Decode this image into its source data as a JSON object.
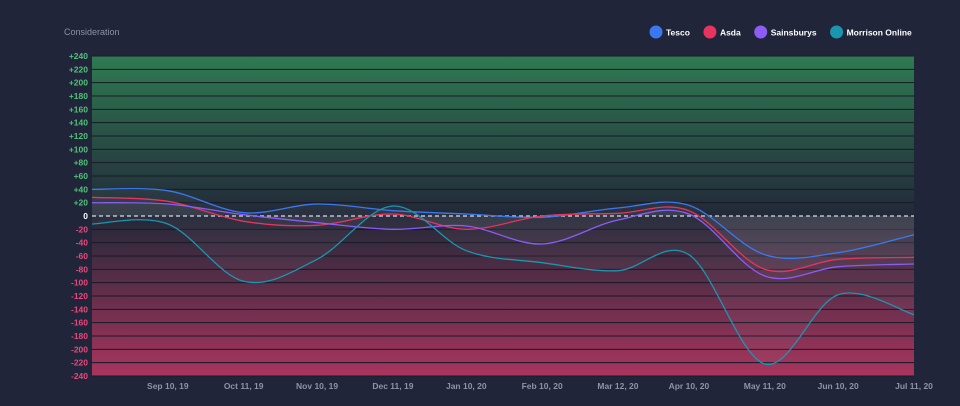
{
  "chart_data": {
    "type": "line",
    "title": "Consideration",
    "xlabel": "",
    "ylabel": "",
    "ylim": [
      -240,
      240
    ],
    "y_tick_step": 20,
    "x_range": [
      "2019-08-10",
      "2020-07-11"
    ],
    "x_ticks": [
      {
        "date": "2019-09-10",
        "label": "Sep 10, 19"
      },
      {
        "date": "2019-10-11",
        "label": "Oct 11, 19"
      },
      {
        "date": "2019-11-10",
        "label": "Nov 10, 19"
      },
      {
        "date": "2019-12-11",
        "label": "Dec 11, 19"
      },
      {
        "date": "2020-01-10",
        "label": "Jan 10, 20"
      },
      {
        "date": "2020-02-10",
        "label": "Feb 10, 20"
      },
      {
        "date": "2020-03-12",
        "label": "Mar 12, 20"
      },
      {
        "date": "2020-04-10",
        "label": "Apr 10, 20"
      },
      {
        "date": "2020-05-11",
        "label": "May 11, 20"
      },
      {
        "date": "2020-06-10",
        "label": "Jun 10, 20"
      },
      {
        "date": "2020-07-11",
        "label": "Jul 11, 20"
      }
    ],
    "legend_position": "top-right",
    "zero_line": "dashed",
    "positive_color": "#2f7a52",
    "negative_color": "#a8355e",
    "series": [
      {
        "name": "Tesco",
        "color": "#3b78f0",
        "x": [
          "2019-08-10",
          "2019-09-10",
          "2019-10-11",
          "2019-11-10",
          "2019-12-11",
          "2020-01-10",
          "2020-02-10",
          "2020-03-12",
          "2020-04-10",
          "2020-05-11",
          "2020-06-10",
          "2020-07-11"
        ],
        "y": [
          40,
          38,
          5,
          18,
          8,
          3,
          -2,
          12,
          16,
          -58,
          -55,
          -28
        ]
      },
      {
        "name": "Asda",
        "color": "#e8335f",
        "x": [
          "2019-08-10",
          "2019-09-10",
          "2019-10-11",
          "2019-11-10",
          "2019-12-11",
          "2020-01-10",
          "2020-02-10",
          "2020-03-12",
          "2020-04-10",
          "2020-05-11",
          "2020-06-10",
          "2020-07-11"
        ],
        "y": [
          28,
          22,
          -8,
          -14,
          3,
          -20,
          0,
          4,
          8,
          -80,
          -65,
          -62
        ]
      },
      {
        "name": "Sainsburys",
        "color": "#8b5cf6",
        "x": [
          "2019-08-10",
          "2019-09-10",
          "2019-10-11",
          "2019-11-10",
          "2019-12-11",
          "2020-01-10",
          "2020-02-10",
          "2020-03-12",
          "2020-04-10",
          "2020-05-11",
          "2020-06-10",
          "2020-07-11"
        ],
        "y": [
          20,
          18,
          2,
          -10,
          -20,
          -15,
          -42,
          -6,
          3,
          -90,
          -76,
          -72
        ]
      },
      {
        "name": "Morrison Online",
        "color": "#1a96b0",
        "x": [
          "2019-08-10",
          "2019-09-10",
          "2019-10-11",
          "2019-11-10",
          "2019-12-11",
          "2020-01-10",
          "2020-02-10",
          "2020-03-12",
          "2020-04-10",
          "2020-05-11",
          "2020-06-10",
          "2020-07-11"
        ],
        "y": [
          -12,
          -12,
          -98,
          -65,
          15,
          -52,
          -70,
          -82,
          -58,
          -222,
          -118,
          -148
        ]
      }
    ]
  }
}
